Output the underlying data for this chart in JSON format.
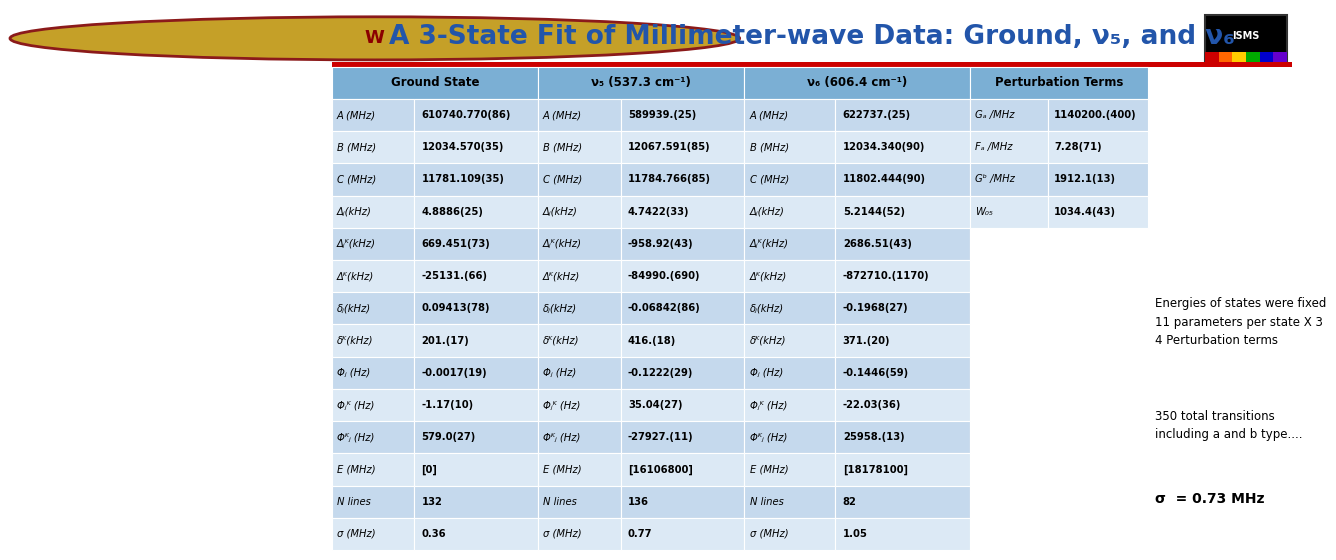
{
  "title": "A 3-State Fit of Millimeter-wave Data: Ground, ν₅, and ν₆",
  "title_color": "#2255aa",
  "header_bg": "#7bafd4",
  "row_bg_odd": "#c5d9ed",
  "row_bg_even": "#dce9f5",
  "header_text_color": "#000000",
  "header_row": [
    "Ground State",
    "ν₅ (537.3 cm⁻¹)",
    "ν₆ (606.4 cm⁻¹)",
    "Perturbation Terms"
  ],
  "col1_labels": [
    "A (MHz)",
    "B (MHz)",
    "C (MHz)",
    "Δⱼ(kHz)",
    "Δⱼᴷ(kHz)",
    "Δᴷ(kHz)",
    "δⱼ(kHz)",
    "δᴷ(kHz)",
    "Φⱼ (Hz)",
    "Φⱼᴷ (Hz)",
    "Φᴷⱼ (Hz)",
    "E (MHz)",
    "N lines",
    "σ (MHz)"
  ],
  "col1_values": [
    "610740.770(86)",
    "12034.570(35)",
    "11781.109(35)",
    "4.8886(25)",
    "669.451(73)",
    "-25131.(66)",
    "0.09413(78)",
    "201.(17)",
    "-0.0017(19)",
    "-1.17(10)",
    "579.0(27)",
    "[0]",
    "132",
    "0.36"
  ],
  "col2_labels": [
    "A (MHz)",
    "B (MHz)",
    "C (MHz)",
    "Δⱼ(kHz)",
    "Δⱼᴷ(kHz)",
    "Δᴷ(kHz)",
    "δⱼ(kHz)",
    "δᴷ(kHz)",
    "Φⱼ (Hz)",
    "Φⱼᴷ (Hz)",
    "Φᴷⱼ (Hz)",
    "E (MHz)",
    "N lines",
    "σ (MHz)"
  ],
  "col2_values": [
    "589939.(25)",
    "12067.591(85)",
    "11784.766(85)",
    "4.7422(33)",
    "-958.92(43)",
    "-84990.(690)",
    "-0.06842(86)",
    "416.(18)",
    "-0.1222(29)",
    "35.04(27)",
    "-27927.(11)",
    "[16106800]",
    "136",
    "0.77"
  ],
  "col3_labels": [
    "A (MHz)",
    "B (MHz)",
    "C (MHz)",
    "Δⱼ(kHz)",
    "Δⱼᴷ(kHz)",
    "Δᴷ(kHz)",
    "δⱼ(kHz)",
    "δᴷ(kHz)",
    "Φⱼ (Hz)",
    "Φⱼᴷ (Hz)",
    "Φᴷⱼ (Hz)",
    "E (MHz)",
    "N lines",
    "σ (MHz)"
  ],
  "col3_values": [
    "622737.(25)",
    "12034.340(90)",
    "11802.444(90)",
    "5.2144(52)",
    "2686.51(43)",
    "-872710.(1170)",
    "-0.1968(27)",
    "371.(20)",
    "-0.1446(59)",
    "-22.03(36)",
    "25958.(13)",
    "[18178100]",
    "82",
    "1.05"
  ],
  "perturb_labels": [
    "Gₐ /MHz",
    "Fₐ /MHz",
    "Gᵇ /MHz",
    "W₀₅"
  ],
  "perturb_values": [
    "1140200.(400)",
    "7.28(71)",
    "1912.1(13)",
    "1034.4(43)"
  ],
  "annotation1": "Energies of states were fixed\n11 parameters per state X 3\n4 Perturbation terms",
  "annotation2": "350 total transitions\nincluding a and b type....",
  "annotation3": "σ  = 0.73 MHz",
  "bg_color": "#ffffff",
  "red_bar_color": "#cc0000",
  "title_fontsize": 19,
  "header_fontsize": 8.5,
  "cell_fontsize": 7.2
}
